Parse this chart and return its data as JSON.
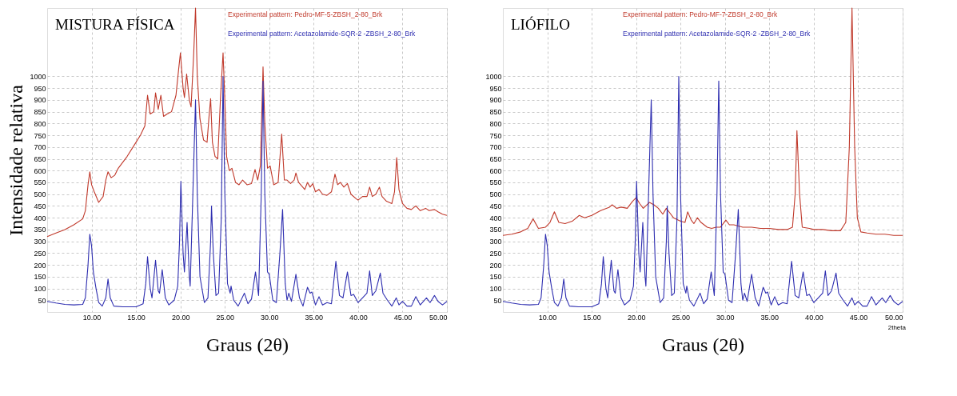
{
  "chart_data": [
    {
      "type": "line",
      "title": "MISTURA FÍSICA",
      "xlabel": "Graus (2θ)",
      "ylabel": "Intensidade relativa",
      "xlim": [
        5,
        50
      ],
      "ylim": [
        0,
        1290
      ],
      "xticks": [
        {
          "value": 10,
          "label": "10.00"
        },
        {
          "value": 15,
          "label": "15.00"
        },
        {
          "value": 20,
          "label": "20.00"
        },
        {
          "value": 25,
          "label": "25.00"
        },
        {
          "value": 30,
          "label": "30.00"
        },
        {
          "value": 35,
          "label": "35.00"
        },
        {
          "value": 40,
          "label": "40.00"
        },
        {
          "value": 45,
          "label": "45.00"
        },
        {
          "value": 50,
          "label": "50.00"
        }
      ],
      "yticks": [
        50,
        100,
        150,
        200,
        250,
        300,
        350,
        400,
        450,
        500,
        550,
        600,
        650,
        700,
        750,
        800,
        850,
        900,
        950,
        1000
      ],
      "grid": true,
      "legend": "top right",
      "line_style": "solid",
      "marker": "none",
      "series": [
        {
          "name": "Experimental pattern: Pedro-MF-5-ZBSH_2-80_Brk",
          "color": "#c0392b",
          "x": [
            5,
            6,
            7,
            8,
            9,
            9.3,
            9.6,
            9.8,
            10.0,
            10.3,
            10.8,
            11.3,
            11.6,
            11.85,
            12.2,
            12.6,
            13.0,
            14,
            15,
            15.5,
            16.0,
            16.3,
            16.6,
            17.0,
            17.2,
            17.5,
            17.8,
            18.1,
            18.5,
            19.0,
            19.5,
            19.8,
            20.0,
            20.3,
            20.45,
            20.7,
            21.0,
            21.2,
            21.5,
            21.7,
            21.9,
            22.2,
            22.6,
            23.0,
            23.2,
            23.4,
            23.6,
            23.9,
            24.2,
            24.5,
            24.8,
            25.0,
            25.2,
            25.5,
            25.8,
            26.2,
            26.6,
            27.0,
            27.5,
            28.0,
            28.4,
            28.7,
            29.0,
            29.3,
            29.5,
            29.8,
            30.1,
            30.5,
            31.0,
            31.4,
            31.7,
            32.0,
            32.4,
            32.8,
            33.0,
            33.3,
            34.0,
            34.3,
            34.6,
            34.9,
            35.2,
            35.6,
            36.0,
            36.5,
            37.0,
            37.4,
            37.7,
            38.0,
            38.4,
            38.8,
            39.2,
            39.8,
            40.0,
            40.5,
            41.0,
            41.3,
            41.6,
            42.0,
            42.4,
            42.7,
            43.2,
            43.8,
            44.1,
            44.35,
            44.6,
            45.0,
            45.5,
            46.0,
            46.5,
            47.0,
            47.6,
            48.0,
            48.6,
            49.0,
            49.5,
            50
          ],
          "values": [
            320,
            335,
            350,
            370,
            395,
            430,
            540,
            595,
            540,
            510,
            465,
            490,
            560,
            595,
            570,
            580,
            610,
            660,
            720,
            750,
            790,
            920,
            840,
            850,
            930,
            860,
            920,
            830,
            840,
            850,
            920,
            1030,
            1100,
            950,
            910,
            1010,
            900,
            870,
            1100,
            1290,
            1000,
            820,
            730,
            720,
            820,
            905,
            720,
            660,
            650,
            900,
            1100,
            900,
            660,
            600,
            610,
            550,
            540,
            560,
            540,
            545,
            605,
            560,
            620,
            1040,
            800,
            610,
            620,
            540,
            550,
            755,
            560,
            560,
            545,
            560,
            590,
            550,
            520,
            550,
            530,
            545,
            510,
            520,
            500,
            495,
            510,
            585,
            540,
            550,
            530,
            545,
            500,
            480,
            475,
            490,
            490,
            530,
            490,
            500,
            530,
            490,
            470,
            460,
            510,
            655,
            520,
            460,
            440,
            435,
            450,
            430,
            440,
            430,
            435,
            425,
            415,
            410
          ]
        },
        {
          "name": "Experimental pattern: Acetazolamide-SQR-2 -ZBSH_2-80_Brk",
          "color": "#2e2eb0",
          "x": [
            5,
            6,
            7,
            8,
            9,
            9.3,
            9.6,
            9.8,
            10.0,
            10.2,
            10.5,
            10.8,
            11.2,
            11.6,
            11.85,
            12.1,
            12.5,
            13.5,
            15,
            15.8,
            16.1,
            16.3,
            16.6,
            16.8,
            17.2,
            17.5,
            17.65,
            17.95,
            18.3,
            18.7,
            19.3,
            19.7,
            19.9,
            20.05,
            20.3,
            20.45,
            20.75,
            21.0,
            21.1,
            21.4,
            21.7,
            21.9,
            22.2,
            22.7,
            23.1,
            23.4,
            23.5,
            23.7,
            24.0,
            24.3,
            24.6,
            24.8,
            25.0,
            25.3,
            25.6,
            25.7,
            26.0,
            26.5,
            27.2,
            27.6,
            28.0,
            28.45,
            28.8,
            29.1,
            29.3,
            29.5,
            29.8,
            30.0,
            30.4,
            30.8,
            31.2,
            31.5,
            31.8,
            32.0,
            32.2,
            32.5,
            33.0,
            33.4,
            33.8,
            34.3,
            34.6,
            34.8,
            35.2,
            35.6,
            36.0,
            36.5,
            37.0,
            37.5,
            37.9,
            38.3,
            38.8,
            39.2,
            39.5,
            40.0,
            40.5,
            41.0,
            41.3,
            41.6,
            42.0,
            42.5,
            42.8,
            43.3,
            43.8,
            44.3,
            44.6,
            45.0,
            45.5,
            46.0,
            46.5,
            47.0,
            47.7,
            48.1,
            48.6,
            49.0,
            49.5,
            50
          ],
          "values": [
            45,
            38,
            32,
            30,
            32,
            60,
            200,
            330,
            280,
            170,
            100,
            40,
            25,
            60,
            140,
            60,
            25,
            22,
            22,
            35,
            120,
            235,
            100,
            60,
            220,
            90,
            80,
            180,
            60,
            30,
            50,
            110,
            300,
            555,
            250,
            170,
            380,
            150,
            110,
            500,
            900,
            500,
            150,
            40,
            60,
            300,
            450,
            250,
            70,
            80,
            400,
            1000,
            500,
            120,
            80,
            110,
            50,
            25,
            80,
            35,
            55,
            170,
            70,
            500,
            980,
            500,
            170,
            160,
            50,
            40,
            250,
            435,
            120,
            50,
            80,
            45,
            160,
            60,
            25,
            105,
            80,
            85,
            30,
            65,
            30,
            40,
            35,
            215,
            70,
            60,
            170,
            70,
            75,
            40,
            60,
            80,
            175,
            70,
            90,
            165,
            80,
            50,
            25,
            60,
            30,
            45,
            25,
            25,
            65,
            30,
            60,
            40,
            70,
            45,
            30,
            45
          ]
        }
      ]
    },
    {
      "type": "line",
      "title": "LIÓFILO",
      "xlabel": "Graus (2θ)",
      "xlim": [
        5,
        50
      ],
      "ylim": [
        0,
        1290
      ],
      "xticks": [
        {
          "value": 10,
          "label": "10.00"
        },
        {
          "value": 15,
          "label": "15.00"
        },
        {
          "value": 20,
          "label": "20.00"
        },
        {
          "value": 25,
          "label": "25.00"
        },
        {
          "value": 30,
          "label": "30.00"
        },
        {
          "value": 35,
          "label": "35.00"
        },
        {
          "value": 40,
          "label": "40.00"
        },
        {
          "value": 45,
          "label": "45.00"
        },
        {
          "value": 50,
          "label": "50.00"
        }
      ],
      "yticks": [
        50,
        100,
        150,
        200,
        250,
        300,
        350,
        400,
        450,
        500,
        550,
        600,
        650,
        700,
        750,
        800,
        850,
        900,
        950,
        1000
      ],
      "grid": true,
      "legend": "top right",
      "line_style": "solid",
      "marker": "none",
      "annotations": [
        "2theta"
      ],
      "series": [
        {
          "name": "Experimental pattern: Pedro-MF-7-ZBSH_2-80_Brk",
          "color": "#c0392b",
          "x": [
            5,
            6,
            7,
            7.8,
            8.4,
            9.0,
            9.8,
            10.3,
            10.8,
            11.3,
            12.0,
            12.8,
            13.6,
            14.2,
            15,
            16,
            17,
            17.3,
            17.8,
            18.3,
            19,
            19.6,
            20,
            20.4,
            20.8,
            21.5,
            22.0,
            22.5,
            23.0,
            23.4,
            23.8,
            24.2,
            25.0,
            25.5,
            25.8,
            26.2,
            26.5,
            26.9,
            27.3,
            28,
            28.5,
            29,
            29.5,
            30.1,
            30.5,
            31,
            32,
            33,
            34,
            35,
            36,
            37,
            37.6,
            37.9,
            38.1,
            38.4,
            38.7,
            39.5,
            40,
            41,
            42,
            43,
            43.6,
            44.0,
            44.3,
            44.6,
            44.9,
            45.3,
            46,
            47,
            48,
            49,
            50
          ],
          "values": [
            325,
            330,
            340,
            355,
            395,
            355,
            360,
            380,
            425,
            380,
            375,
            385,
            410,
            400,
            410,
            430,
            445,
            455,
            440,
            445,
            440,
            470,
            485,
            460,
            440,
            465,
            455,
            440,
            415,
            440,
            420,
            400,
            385,
            380,
            425,
            390,
            375,
            400,
            380,
            360,
            355,
            360,
            360,
            390,
            370,
            370,
            360,
            360,
            355,
            355,
            350,
            350,
            360,
            500,
            770,
            500,
            360,
            355,
            350,
            350,
            345,
            345,
            380,
            700,
            1290,
            700,
            400,
            340,
            335,
            330,
            330,
            325,
            325
          ]
        },
        {
          "name": "Experimental pattern: Acetazolamide-SQR-2 -ZBSH_2-80_Brk",
          "color": "#2e2eb0",
          "x": [
            5,
            6,
            7,
            8,
            9,
            9.3,
            9.6,
            9.8,
            10.0,
            10.2,
            10.5,
            10.8,
            11.2,
            11.6,
            11.85,
            12.1,
            12.5,
            13.5,
            15,
            15.8,
            16.1,
            16.3,
            16.6,
            16.8,
            17.2,
            17.5,
            17.65,
            17.95,
            18.3,
            18.7,
            19.3,
            19.7,
            19.9,
            20.05,
            20.3,
            20.45,
            20.75,
            21.0,
            21.1,
            21.4,
            21.7,
            21.9,
            22.2,
            22.7,
            23.1,
            23.4,
            23.5,
            23.7,
            24.0,
            24.3,
            24.6,
            24.8,
            25.0,
            25.3,
            25.6,
            25.7,
            26.0,
            26.5,
            27.2,
            27.6,
            28.0,
            28.45,
            28.8,
            29.1,
            29.3,
            29.5,
            29.8,
            30.0,
            30.4,
            30.8,
            31.2,
            31.5,
            31.8,
            32.0,
            32.2,
            32.5,
            33.0,
            33.4,
            33.8,
            34.3,
            34.6,
            34.8,
            35.2,
            35.6,
            36.0,
            36.5,
            37.0,
            37.5,
            37.9,
            38.3,
            38.8,
            39.2,
            39.5,
            40.0,
            40.5,
            41.0,
            41.3,
            41.6,
            42.0,
            42.5,
            42.8,
            43.3,
            43.8,
            44.3,
            44.6,
            45.0,
            45.5,
            46.0,
            46.5,
            47.0,
            47.7,
            48.1,
            48.6,
            49.0,
            49.5,
            50
          ],
          "values": [
            45,
            38,
            32,
            30,
            32,
            60,
            200,
            330,
            280,
            170,
            100,
            40,
            25,
            60,
            140,
            60,
            25,
            22,
            22,
            35,
            120,
            235,
            100,
            60,
            220,
            90,
            80,
            180,
            60,
            30,
            50,
            110,
            300,
            555,
            250,
            170,
            380,
            150,
            110,
            500,
            900,
            500,
            150,
            40,
            60,
            300,
            450,
            250,
            70,
            80,
            400,
            1000,
            500,
            120,
            80,
            110,
            50,
            25,
            80,
            35,
            55,
            170,
            70,
            500,
            980,
            500,
            170,
            160,
            50,
            40,
            250,
            435,
            120,
            50,
            80,
            45,
            160,
            60,
            25,
            105,
            80,
            85,
            30,
            65,
            30,
            40,
            35,
            215,
            70,
            60,
            170,
            70,
            75,
            40,
            60,
            80,
            175,
            70,
            90,
            165,
            80,
            50,
            25,
            60,
            30,
            45,
            25,
            25,
            65,
            30,
            60,
            40,
            70,
            45,
            30,
            45
          ]
        }
      ]
    }
  ]
}
